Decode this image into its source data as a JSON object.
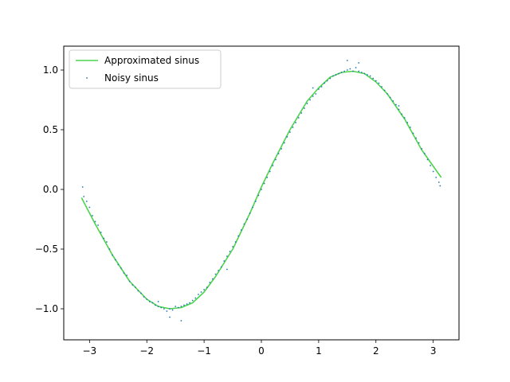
{
  "chart_data": {
    "type": "scatter",
    "title": "",
    "xlabel": "",
    "ylabel": "",
    "xlim": [
      -3.45,
      3.45
    ],
    "ylim": [
      -1.26,
      1.2
    ],
    "xticks": [
      -3,
      -2,
      -1,
      0,
      1,
      2,
      3
    ],
    "xtick_labels": [
      "−3",
      "−2",
      "−1",
      "0",
      "1",
      "2",
      "3"
    ],
    "yticks": [
      -1.0,
      -0.5,
      0.0,
      0.5,
      1.0
    ],
    "ytick_labels": [
      "−1.0",
      "−0.5",
      "0.0",
      "0.5",
      "1.0"
    ],
    "grid": false,
    "legend_position": "upper-left",
    "series": [
      {
        "name": "Approximated sinus",
        "kind": "line",
        "color": "#4cd44c",
        "x": [
          -3.14,
          -2.9,
          -2.6,
          -2.3,
          -2.0,
          -1.8,
          -1.6,
          -1.4,
          -1.2,
          -1.0,
          -0.8,
          -0.5,
          -0.2,
          0.0,
          0.2,
          0.5,
          0.8,
          1.0,
          1.2,
          1.4,
          1.6,
          1.8,
          2.0,
          2.2,
          2.5,
          2.8,
          3.14
        ],
        "y": [
          -0.07,
          -0.29,
          -0.55,
          -0.77,
          -0.92,
          -0.98,
          -1.0,
          -0.99,
          -0.95,
          -0.86,
          -0.73,
          -0.5,
          -0.2,
          0.02,
          0.22,
          0.5,
          0.74,
          0.85,
          0.94,
          0.98,
          0.99,
          0.97,
          0.9,
          0.8,
          0.59,
          0.33,
          0.1
        ]
      },
      {
        "name": "Noisy sinus",
        "kind": "scatter",
        "color": "#1f77b4",
        "x": [
          -3.12,
          -3.1,
          -3.05,
          -3.0,
          -2.95,
          -2.9,
          -2.85,
          -2.8,
          -2.75,
          -2.7,
          -2.65,
          -2.6,
          -2.55,
          -2.5,
          -2.45,
          -2.4,
          -2.35,
          -2.3,
          -2.25,
          -2.2,
          -2.15,
          -2.1,
          -2.05,
          -2.0,
          -1.95,
          -1.9,
          -1.85,
          -1.8,
          -1.75,
          -1.7,
          -1.65,
          -1.6,
          -1.55,
          -1.5,
          -1.45,
          -1.4,
          -1.35,
          -1.3,
          -1.25,
          -1.2,
          -1.15,
          -1.1,
          -1.05,
          -1.0,
          -0.95,
          -0.9,
          -0.85,
          -0.8,
          -0.75,
          -0.7,
          -0.65,
          -0.6,
          -0.55,
          -0.5,
          -0.45,
          -0.4,
          -0.35,
          -0.3,
          -0.25,
          -0.2,
          -0.15,
          -0.1,
          -0.05,
          0.0,
          0.05,
          0.1,
          0.15,
          0.2,
          0.25,
          0.3,
          0.35,
          0.4,
          0.45,
          0.5,
          0.55,
          0.6,
          0.65,
          0.7,
          0.75,
          0.8,
          0.85,
          0.9,
          0.95,
          1.0,
          1.05,
          1.1,
          1.15,
          1.2,
          1.25,
          1.3,
          1.35,
          1.4,
          1.45,
          1.5,
          1.55,
          1.6,
          1.65,
          1.7,
          1.75,
          1.8,
          1.85,
          1.9,
          1.95,
          2.0,
          2.05,
          2.1,
          2.15,
          2.2,
          2.25,
          2.3,
          2.35,
          2.4,
          2.45,
          2.5,
          2.55,
          2.6,
          2.65,
          2.7,
          2.75,
          2.8,
          2.85,
          2.9,
          2.95,
          3.0,
          3.05,
          3.1,
          3.12,
          -1.4,
          -1.6,
          -1.8,
          1.5,
          1.7,
          0.9,
          -0.6,
          2.4
        ],
        "y": [
          0.02,
          -0.06,
          -0.1,
          -0.15,
          -0.22,
          -0.27,
          -0.3,
          -0.36,
          -0.41,
          -0.44,
          -0.5,
          -0.55,
          -0.59,
          -0.63,
          -0.66,
          -0.7,
          -0.72,
          -0.77,
          -0.8,
          -0.82,
          -0.85,
          -0.87,
          -0.9,
          -0.92,
          -0.94,
          -0.95,
          -0.97,
          -0.98,
          -0.99,
          -1.0,
          -1.02,
          -1.0,
          -1.01,
          -0.98,
          -0.99,
          -0.98,
          -0.97,
          -0.96,
          -0.95,
          -0.93,
          -0.91,
          -0.88,
          -0.86,
          -0.84,
          -0.82,
          -0.78,
          -0.75,
          -0.71,
          -0.68,
          -0.65,
          -0.6,
          -0.56,
          -0.52,
          -0.48,
          -0.44,
          -0.39,
          -0.34,
          -0.29,
          -0.25,
          -0.2,
          -0.15,
          -0.1,
          -0.05,
          0.0,
          0.05,
          0.1,
          0.15,
          0.2,
          0.25,
          0.3,
          0.34,
          0.39,
          0.44,
          0.48,
          0.52,
          0.56,
          0.6,
          0.64,
          0.68,
          0.72,
          0.75,
          0.78,
          0.8,
          0.84,
          0.86,
          0.89,
          0.91,
          0.93,
          0.95,
          0.96,
          0.97,
          0.98,
          0.99,
          1.0,
          1.01,
          0.99,
          1.02,
          0.99,
          0.98,
          0.97,
          0.96,
          0.95,
          0.93,
          0.91,
          0.89,
          0.86,
          0.83,
          0.8,
          0.77,
          0.74,
          0.71,
          0.67,
          0.63,
          0.6,
          0.56,
          0.52,
          0.47,
          0.43,
          0.39,
          0.34,
          0.3,
          0.25,
          0.2,
          0.15,
          0.1,
          0.06,
          0.03,
          -1.1,
          -1.07,
          -0.94,
          1.08,
          1.06,
          0.85,
          -0.67,
          0.7
        ]
      }
    ]
  }
}
